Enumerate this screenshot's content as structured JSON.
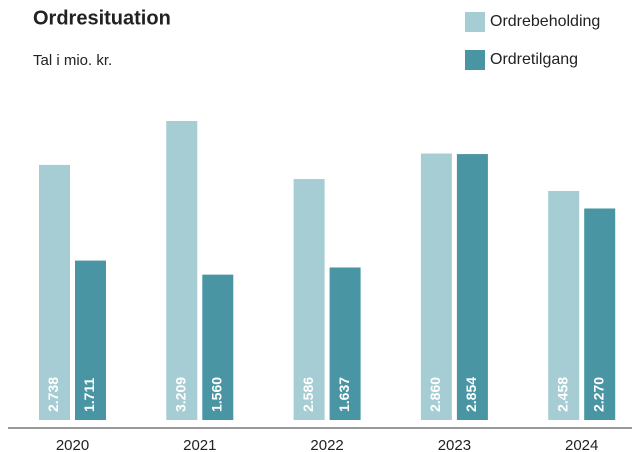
{
  "chart_data": {
    "type": "bar",
    "title": "Ordresituation",
    "subtitle": "Tal i mio. kr.",
    "categories": [
      "2020",
      "2021",
      "2022",
      "2023",
      "2024"
    ],
    "series": [
      {
        "name": "Ordrebeholding",
        "color": "#a6cdd3",
        "values": [
          2738,
          3209,
          2586,
          2860,
          2458
        ],
        "value_labels": [
          "2.738",
          "3.209",
          "2.586",
          "2.860",
          "2.458"
        ]
      },
      {
        "name": "Ordretilgang",
        "color": "#4a95a3",
        "values": [
          1711,
          1560,
          1637,
          2854,
          2270
        ],
        "value_labels": [
          "1.711",
          "1.560",
          "1.637",
          "2.854",
          "2.270"
        ]
      }
    ]
  }
}
